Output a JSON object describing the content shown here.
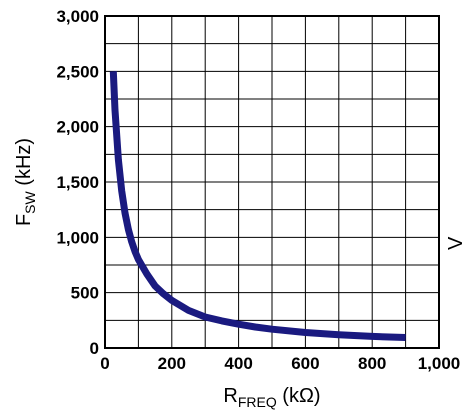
{
  "chart_data": {
    "type": "line",
    "title": "",
    "xlabel": {
      "main": "R",
      "sub": "FREQ",
      "unit": " (kΩ)"
    },
    "ylabel": {
      "main": "F",
      "sub": "SW",
      "unit": " (kHz)"
    },
    "xlim": [
      0,
      1000
    ],
    "ylim": [
      0,
      3000
    ],
    "x_ticks": [
      0,
      100,
      200,
      300,
      400,
      500,
      600,
      700,
      800,
      900,
      1000
    ],
    "y_ticks": [
      0,
      250,
      500,
      750,
      1000,
      1250,
      1500,
      1750,
      2000,
      2250,
      2500,
      2750,
      3000
    ],
    "x_tick_labels": [
      {
        "value": 0,
        "label": "0"
      },
      {
        "value": 200,
        "label": "200"
      },
      {
        "value": 400,
        "label": "400"
      },
      {
        "value": 600,
        "label": "600"
      },
      {
        "value": 800,
        "label": "800"
      },
      {
        "value": 1000,
        "label": "1,000"
      }
    ],
    "y_tick_labels": [
      {
        "value": 0,
        "label": "0"
      },
      {
        "value": 500,
        "label": "500"
      },
      {
        "value": 1000,
        "label": "1,000"
      },
      {
        "value": 1500,
        "label": "1,500"
      },
      {
        "value": 2000,
        "label": "2,000"
      },
      {
        "value": 2500,
        "label": "2,500"
      },
      {
        "value": 3000,
        "label": "3,000"
      }
    ],
    "grid": true,
    "series": [
      {
        "color": "#1a1a80",
        "x": [
          25,
          30,
          40,
          50,
          60,
          70,
          80,
          90,
          100,
          125,
          150,
          175,
          200,
          250,
          300,
          350,
          400,
          450,
          500,
          600,
          700,
          800,
          900
        ],
        "y": [
          2500,
          2150,
          1700,
          1420,
          1220,
          1070,
          960,
          870,
          800,
          670,
          560,
          490,
          430,
          340,
          280,
          245,
          215,
          190,
          170,
          140,
          120,
          105,
          95
        ]
      }
    ]
  },
  "clipped_right_label": "V"
}
